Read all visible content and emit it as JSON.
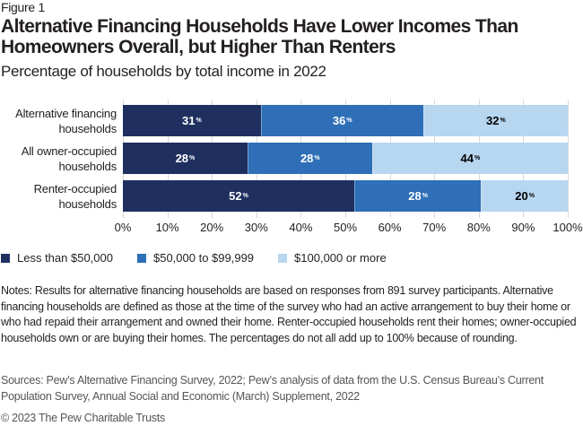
{
  "figure_label": "Figure 1",
  "title": "Alternative Financing Households Have Lower Incomes Than Homeowners Overall, but Higher Than Renters",
  "subtitle": "Percentage of households by total income in 2022",
  "colors": {
    "less_than_50k": "#1f3060",
    "50k_to_99k": "#2e6fb7",
    "100k_or_more": "#b7d6f0",
    "label_light": "#ffffff",
    "label_dark": "#000000"
  },
  "rows": [
    {
      "label_line1": "Alternative financing",
      "label_line2": "households",
      "segments": [
        {
          "value": 31,
          "text": "31"
        },
        {
          "value": 36.5,
          "text": "36"
        },
        {
          "value": 32.5,
          "text": "32"
        }
      ]
    },
    {
      "label_line1": "All owner-occupied",
      "label_line2": "households",
      "segments": [
        {
          "value": 28,
          "text": "28"
        },
        {
          "value": 28,
          "text": "28"
        },
        {
          "value": 44,
          "text": "44"
        }
      ]
    },
    {
      "label_line1": "Renter-occupied",
      "label_line2": "households",
      "segments": [
        {
          "value": 52,
          "text": "52"
        },
        {
          "value": 28.5,
          "text": "28"
        },
        {
          "value": 19.5,
          "text": "20"
        }
      ]
    }
  ],
  "percent_sign": "%",
  "ticks": [
    "0%",
    "10%",
    "20%",
    "30%",
    "40%",
    "50%",
    "60%",
    "70%",
    "80%",
    "90%",
    "100%"
  ],
  "legend": [
    {
      "label": "Less than $50,000"
    },
    {
      "label": "$50,000 to $99,999"
    },
    {
      "label": "$100,000 or more"
    }
  ],
  "notes": "Notes: Results for alternative financing households are based on responses from 891 survey participants. Alternative financing households are defined as those at the time of the survey who had an active arrangement to buy their home or who had repaid their arrangement and owned their home. Renter-occupied households rent their homes; owner-occupied households own or are buying their homes. The percentages do not all add up to 100% because of rounding.",
  "sources": "Sources: Pew’s Alternative Financing Survey, 2022; Pew’s analysis of data from the U.S. Census Bureau’s Current Population Survey, Annual Social and Economic (March) Supplement, 2022",
  "copyright": "© 2023 The Pew Charitable Trusts",
  "chart_data": {
    "type": "bar",
    "orientation": "horizontal",
    "stacked": true,
    "title": "Alternative Financing Households Have Lower Incomes Than Homeowners Overall, but Higher Than Renters",
    "subtitle": "Percentage of households by total income in 2022",
    "categories": [
      "Alternative financing households",
      "All owner-occupied households",
      "Renter-occupied households"
    ],
    "series": [
      {
        "name": "Less than $50,000",
        "values": [
          31,
          28,
          52
        ],
        "color": "#1f3060"
      },
      {
        "name": "$50,000 to $99,999",
        "values": [
          36,
          28,
          28
        ],
        "color": "#2e6fb7"
      },
      {
        "name": "$100,000 or more",
        "values": [
          32,
          44,
          20
        ],
        "color": "#b7d6f0"
      }
    ],
    "xlabel": "",
    "ylabel": "",
    "xlim": [
      0,
      100
    ],
    "xticks": [
      "0%",
      "10%",
      "20%",
      "30%",
      "40%",
      "50%",
      "60%",
      "70%",
      "80%",
      "90%",
      "100%"
    ],
    "grid": "vertical",
    "legend_position": "bottom"
  }
}
